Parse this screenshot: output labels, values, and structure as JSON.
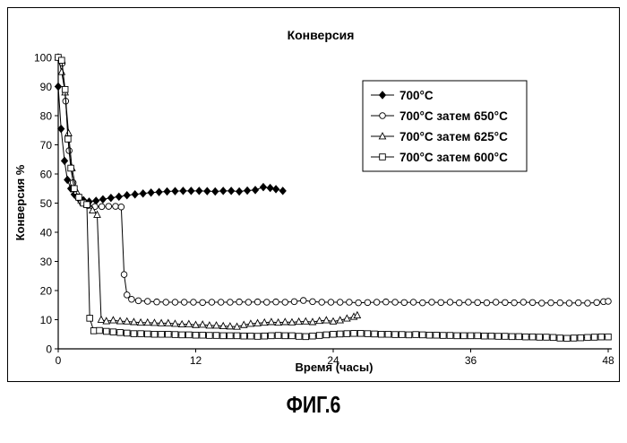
{
  "figure_caption": "ФИГ.6",
  "chart_data": {
    "type": "line",
    "title": "Конверсия",
    "xlabel": "Время (часы)",
    "ylabel": "Конверсия %",
    "xlim": [
      0,
      48
    ],
    "ylim": [
      0,
      100
    ],
    "xticks": [
      0,
      12,
      24,
      36,
      48
    ],
    "yticks": [
      0,
      10,
      20,
      30,
      40,
      50,
      60,
      70,
      80,
      90,
      100
    ],
    "grid": false,
    "legend_position": "top-right",
    "series": [
      {
        "name": "700°C",
        "marker": "diamond-filled",
        "color": "#000000",
        "points": [
          [
            0.0,
            90.0
          ],
          [
            0.25,
            75.5
          ],
          [
            0.55,
            64.5
          ],
          [
            0.8,
            58.0
          ],
          [
            1.1,
            55.0
          ],
          [
            1.4,
            53.0
          ],
          [
            1.8,
            51.5
          ],
          [
            2.2,
            51.0
          ],
          [
            2.7,
            50.5
          ],
          [
            3.3,
            50.8
          ],
          [
            3.9,
            51.3
          ],
          [
            4.6,
            51.8
          ],
          [
            5.3,
            52.2
          ],
          [
            6.0,
            52.7
          ],
          [
            6.7,
            53.0
          ],
          [
            7.4,
            53.3
          ],
          [
            8.1,
            53.6
          ],
          [
            8.8,
            53.8
          ],
          [
            9.5,
            54.0
          ],
          [
            10.2,
            54.1
          ],
          [
            10.9,
            54.2
          ],
          [
            11.6,
            54.2
          ],
          [
            12.3,
            54.2
          ],
          [
            13.0,
            54.1
          ],
          [
            13.7,
            54.0
          ],
          [
            14.4,
            54.2
          ],
          [
            15.1,
            54.2
          ],
          [
            15.8,
            54.0
          ],
          [
            16.5,
            54.3
          ],
          [
            17.2,
            54.5
          ],
          [
            17.9,
            55.5
          ],
          [
            18.5,
            55.2
          ],
          [
            19.0,
            54.8
          ],
          [
            19.6,
            54.2
          ]
        ]
      },
      {
        "name": "700°C затем 650°C",
        "marker": "circle-open",
        "color": "#000000",
        "points": [
          [
            0.0,
            100.0
          ],
          [
            0.35,
            98.0
          ],
          [
            0.65,
            85.0
          ],
          [
            0.95,
            68.0
          ],
          [
            1.3,
            57.0
          ],
          [
            1.7,
            52.0
          ],
          [
            2.1,
            50.0
          ],
          [
            2.6,
            49.2
          ],
          [
            3.2,
            48.8
          ],
          [
            3.8,
            48.8
          ],
          [
            4.4,
            48.9
          ],
          [
            5.0,
            48.9
          ],
          [
            5.5,
            48.7
          ],
          [
            5.75,
            25.5
          ],
          [
            6.0,
            18.5
          ],
          [
            6.4,
            17.0
          ],
          [
            7.0,
            16.5
          ],
          [
            7.8,
            16.3
          ],
          [
            8.6,
            16.1
          ],
          [
            9.4,
            16.0
          ],
          [
            10.2,
            16.0
          ],
          [
            11.0,
            16.0
          ],
          [
            11.8,
            16.0
          ],
          [
            12.6,
            15.9
          ],
          [
            13.4,
            16.0
          ],
          [
            14.2,
            16.0
          ],
          [
            15.0,
            16.0
          ],
          [
            15.8,
            16.1
          ],
          [
            16.6,
            16.0
          ],
          [
            17.4,
            16.1
          ],
          [
            18.2,
            16.0
          ],
          [
            19.0,
            16.1
          ],
          [
            19.8,
            16.0
          ],
          [
            20.6,
            16.2
          ],
          [
            21.4,
            16.6
          ],
          [
            22.2,
            16.2
          ],
          [
            23.0,
            16.0
          ],
          [
            23.8,
            16.0
          ],
          [
            24.6,
            16.0
          ],
          [
            25.4,
            16.0
          ],
          [
            26.2,
            15.8
          ],
          [
            27.0,
            15.9
          ],
          [
            27.8,
            16.0
          ],
          [
            28.6,
            16.1
          ],
          [
            29.4,
            16.0
          ],
          [
            30.2,
            15.9
          ],
          [
            31.0,
            16.0
          ],
          [
            31.8,
            15.8
          ],
          [
            32.6,
            16.0
          ],
          [
            33.4,
            15.9
          ],
          [
            34.2,
            16.0
          ],
          [
            35.0,
            15.8
          ],
          [
            35.8,
            16.0
          ],
          [
            36.6,
            15.9
          ],
          [
            37.4,
            15.8
          ],
          [
            38.2,
            16.0
          ],
          [
            39.0,
            15.9
          ],
          [
            39.8,
            15.8
          ],
          [
            40.6,
            16.0
          ],
          [
            41.4,
            15.9
          ],
          [
            42.2,
            15.7
          ],
          [
            43.0,
            15.8
          ],
          [
            43.8,
            15.8
          ],
          [
            44.6,
            15.7
          ],
          [
            45.4,
            15.8
          ],
          [
            46.2,
            15.7
          ],
          [
            47.0,
            15.9
          ],
          [
            47.6,
            16.2
          ],
          [
            48.0,
            16.3
          ]
        ]
      },
      {
        "name": "700°C затем 625°C",
        "marker": "triangle-open",
        "color": "#000000",
        "points": [
          [
            0.0,
            100.0
          ],
          [
            0.3,
            95.0
          ],
          [
            0.6,
            88.0
          ],
          [
            0.9,
            74.0
          ],
          [
            1.2,
            62.0
          ],
          [
            1.6,
            54.0
          ],
          [
            2.0,
            51.0
          ],
          [
            2.5,
            49.5
          ],
          [
            3.0,
            47.5
          ],
          [
            3.4,
            46.0
          ],
          [
            3.75,
            10.0
          ],
          [
            4.2,
            9.5
          ],
          [
            4.8,
            9.8
          ],
          [
            5.4,
            9.5
          ],
          [
            6.0,
            9.4
          ],
          [
            6.6,
            9.2
          ],
          [
            7.2,
            9.0
          ],
          [
            7.8,
            9.0
          ],
          [
            8.4,
            8.9
          ],
          [
            9.0,
            8.8
          ],
          [
            9.6,
            8.8
          ],
          [
            10.2,
            8.6
          ],
          [
            10.8,
            8.4
          ],
          [
            11.4,
            8.5
          ],
          [
            12.0,
            8.2
          ],
          [
            12.6,
            8.3
          ],
          [
            13.2,
            8.0
          ],
          [
            13.8,
            8.0
          ],
          [
            14.4,
            7.8
          ],
          [
            15.0,
            7.7
          ],
          [
            15.6,
            7.6
          ],
          [
            16.2,
            8.2
          ],
          [
            16.8,
            8.6
          ],
          [
            17.4,
            8.8
          ],
          [
            18.0,
            9.0
          ],
          [
            18.6,
            9.2
          ],
          [
            19.2,
            9.0
          ],
          [
            19.8,
            9.2
          ],
          [
            20.4,
            9.1
          ],
          [
            21.0,
            9.3
          ],
          [
            21.6,
            9.4
          ],
          [
            22.2,
            9.2
          ],
          [
            22.8,
            9.6
          ],
          [
            23.4,
            9.8
          ],
          [
            24.0,
            9.4
          ],
          [
            24.6,
            9.8
          ],
          [
            25.2,
            10.4
          ],
          [
            25.8,
            11.0
          ],
          [
            26.1,
            11.5
          ]
        ]
      },
      {
        "name": "700°C затем 600°C",
        "marker": "square-open",
        "color": "#000000",
        "points": [
          [
            0.0,
            100.0
          ],
          [
            0.3,
            99.0
          ],
          [
            0.6,
            89.0
          ],
          [
            0.85,
            72.0
          ],
          [
            1.1,
            62.0
          ],
          [
            1.4,
            55.0
          ],
          [
            1.8,
            52.0
          ],
          [
            2.2,
            50.0
          ],
          [
            2.5,
            49.5
          ],
          [
            2.75,
            10.5
          ],
          [
            3.1,
            6.2
          ],
          [
            3.6,
            6.3
          ],
          [
            4.2,
            6.0
          ],
          [
            4.8,
            5.8
          ],
          [
            5.4,
            5.6
          ],
          [
            6.0,
            5.4
          ],
          [
            6.6,
            5.2
          ],
          [
            7.2,
            5.2
          ],
          [
            7.8,
            5.1
          ],
          [
            8.4,
            5.0
          ],
          [
            9.0,
            5.0
          ],
          [
            9.6,
            5.0
          ],
          [
            10.2,
            4.9
          ],
          [
            10.8,
            4.8
          ],
          [
            11.4,
            4.8
          ],
          [
            12.0,
            4.7
          ],
          [
            12.6,
            4.7
          ],
          [
            13.2,
            4.6
          ],
          [
            13.8,
            4.6
          ],
          [
            14.4,
            4.5
          ],
          [
            15.0,
            4.5
          ],
          [
            15.6,
            4.5
          ],
          [
            16.2,
            4.4
          ],
          [
            16.8,
            4.4
          ],
          [
            17.4,
            4.3
          ],
          [
            18.0,
            4.4
          ],
          [
            18.6,
            4.5
          ],
          [
            19.2,
            4.6
          ],
          [
            19.8,
            4.5
          ],
          [
            20.4,
            4.5
          ],
          [
            21.0,
            4.3
          ],
          [
            21.6,
            4.2
          ],
          [
            22.2,
            4.4
          ],
          [
            22.8,
            4.6
          ],
          [
            23.4,
            4.8
          ],
          [
            24.0,
            5.0
          ],
          [
            24.6,
            5.1
          ],
          [
            25.2,
            5.2
          ],
          [
            25.8,
            5.3
          ],
          [
            26.4,
            5.3
          ],
          [
            27.0,
            5.2
          ],
          [
            27.6,
            5.1
          ],
          [
            28.2,
            5.0
          ],
          [
            28.8,
            5.0
          ],
          [
            29.4,
            4.9
          ],
          [
            30.0,
            4.9
          ],
          [
            30.6,
            4.8
          ],
          [
            31.2,
            4.9
          ],
          [
            31.8,
            4.8
          ],
          [
            32.4,
            4.7
          ],
          [
            33.0,
            4.7
          ],
          [
            33.6,
            4.6
          ],
          [
            34.2,
            4.6
          ],
          [
            34.8,
            4.5
          ],
          [
            35.4,
            4.5
          ],
          [
            36.0,
            4.5
          ],
          [
            36.6,
            4.5
          ],
          [
            37.2,
            4.4
          ],
          [
            37.8,
            4.4
          ],
          [
            38.4,
            4.3
          ],
          [
            39.0,
            4.3
          ],
          [
            39.6,
            4.2
          ],
          [
            40.2,
            4.2
          ],
          [
            40.8,
            4.1
          ],
          [
            41.4,
            4.1
          ],
          [
            42.0,
            4.0
          ],
          [
            42.6,
            4.0
          ],
          [
            43.2,
            3.9
          ],
          [
            43.8,
            3.7
          ],
          [
            44.4,
            3.6
          ],
          [
            45.0,
            3.7
          ],
          [
            45.6,
            3.8
          ],
          [
            46.2,
            3.9
          ],
          [
            46.8,
            4.0
          ],
          [
            47.4,
            4.1
          ],
          [
            48.0,
            4.1
          ]
        ]
      }
    ]
  }
}
